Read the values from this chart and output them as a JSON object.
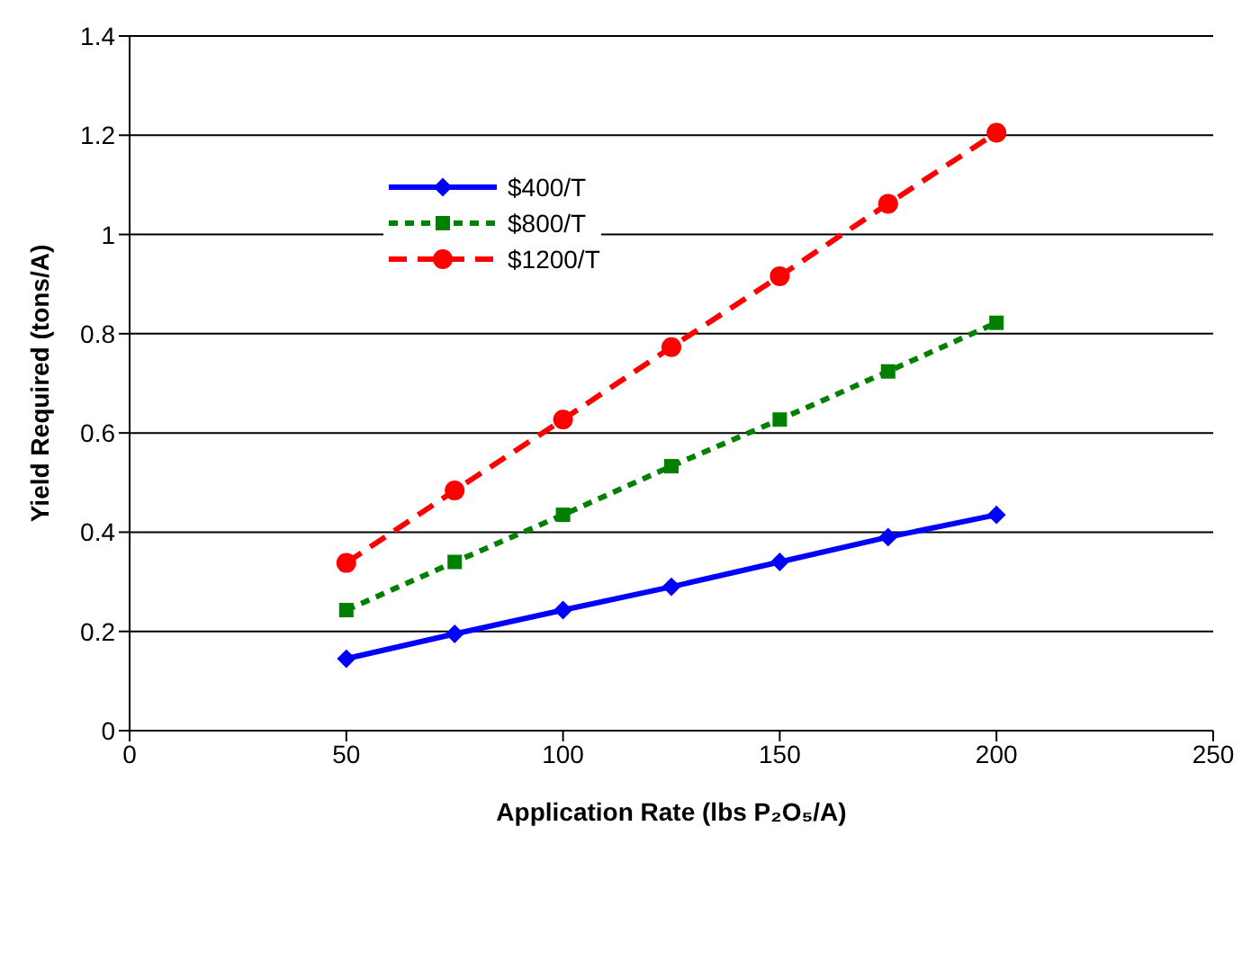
{
  "chart_data": {
    "type": "line",
    "xlabel": "Application Rate (lbs P₂O₅/A)",
    "ylabel": "Yield Required (tons/A)",
    "x": [
      50,
      75,
      100,
      125,
      150,
      175,
      200
    ],
    "series": [
      {
        "name": "$400/T",
        "color": "#0000ff",
        "marker": "diamond",
        "line_style": "solid",
        "values": [
          0.145,
          0.195,
          0.243,
          0.29,
          0.34,
          0.39,
          0.435
        ]
      },
      {
        "name": "$800/T",
        "color": "#008000",
        "marker": "square",
        "line_style": "dotted",
        "values": [
          0.243,
          0.34,
          0.435,
          0.533,
          0.627,
          0.724,
          0.822
        ]
      },
      {
        "name": "$1200/T",
        "color": "#ff0000",
        "marker": "circle",
        "line_style": "dashed",
        "values": [
          0.338,
          0.484,
          0.627,
          0.773,
          0.916,
          1.062,
          1.205
        ]
      }
    ],
    "xlim": [
      0,
      250
    ],
    "xticks": [
      0,
      50,
      100,
      150,
      200,
      250
    ],
    "ylim": [
      0,
      1.4
    ],
    "yticks": [
      0,
      0.2,
      0.4,
      0.6,
      0.8,
      1,
      1.2,
      1.4
    ],
    "grid": "y",
    "legend": "top left"
  }
}
